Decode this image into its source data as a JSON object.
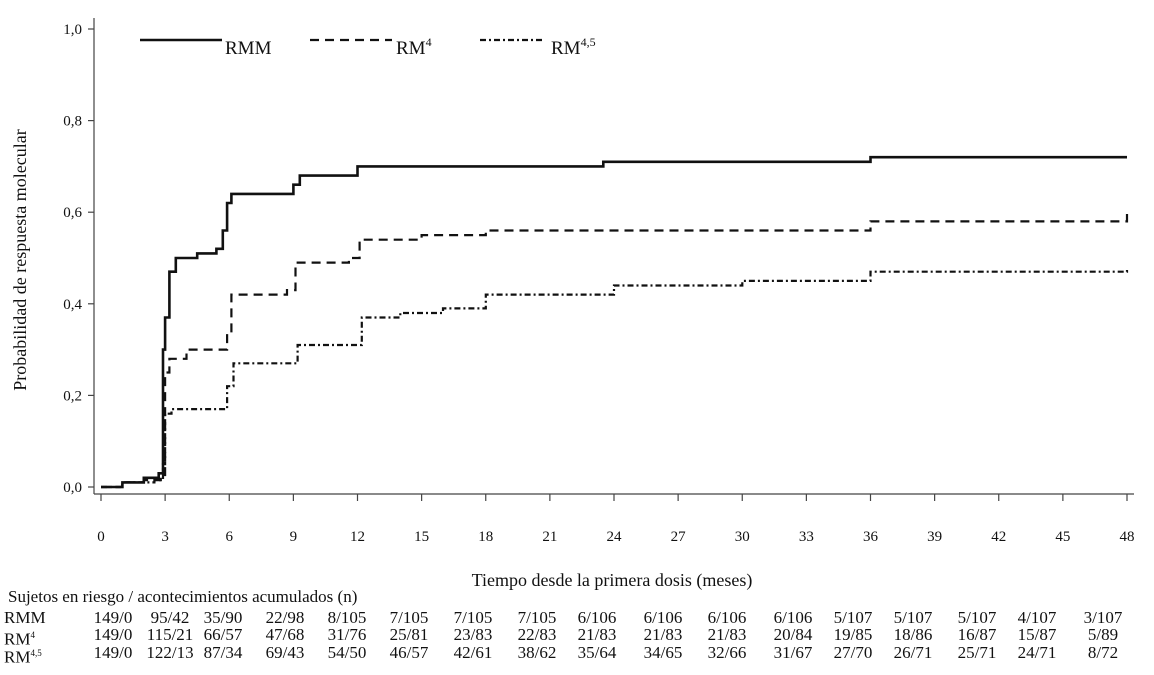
{
  "chart_data": {
    "type": "line",
    "step": true,
    "xlabel": "Tiempo desde la primera dosis (meses)",
    "ylabel": "Probabilidad de respuesta molecular",
    "xlim": [
      0,
      48
    ],
    "ylim": [
      0,
      1.0
    ],
    "xticks": [
      "0",
      "3",
      "6",
      "9",
      "12",
      "15",
      "18",
      "21",
      "24",
      "27",
      "30",
      "33",
      "36",
      "39",
      "42",
      "45",
      "48"
    ],
    "yticks": [
      "0,0",
      "0,2",
      "0,4",
      "0,6",
      "0,8",
      "1,0"
    ],
    "grid": false,
    "legend_position": "top",
    "series": [
      {
        "name": "RMM",
        "style": "solid",
        "x": [
          0,
          1,
          2,
          2.7,
          2.9,
          3.0,
          3.2,
          3.5,
          4.5,
          5.4,
          5.7,
          5.9,
          6.1,
          8.5,
          9.0,
          9.3,
          11.5,
          12.0,
          23.5,
          36.0,
          48.0
        ],
        "y": [
          0,
          0.01,
          0.02,
          0.03,
          0.3,
          0.37,
          0.47,
          0.5,
          0.51,
          0.52,
          0.56,
          0.62,
          0.64,
          0.64,
          0.66,
          0.68,
          0.68,
          0.7,
          0.71,
          0.72,
          0.72
        ]
      },
      {
        "name": "RM4",
        "style": "dashed",
        "x": [
          0,
          1,
          2,
          2.8,
          3.0,
          3.2,
          4.0,
          5.6,
          5.9,
          6.1,
          8.7,
          9.1,
          11.6,
          12.1,
          15.0,
          18.0,
          30.0,
          36.0,
          48.0
        ],
        "y": [
          0,
          0.01,
          0.015,
          0.02,
          0.25,
          0.28,
          0.3,
          0.3,
          0.34,
          0.42,
          0.43,
          0.49,
          0.5,
          0.54,
          0.55,
          0.56,
          0.56,
          0.58,
          0.6
        ]
      },
      {
        "name": "RM4,5",
        "style": "dash-dot",
        "x": [
          0,
          1,
          2.5,
          2.9,
          3.0,
          3.3,
          5.6,
          5.9,
          6.2,
          8.8,
          9.2,
          11.7,
          12.2,
          14.0,
          16.0,
          17.5,
          18.0,
          24.0,
          30.0,
          36.0,
          48.0
        ],
        "y": [
          0,
          0.01,
          0.015,
          0.05,
          0.16,
          0.17,
          0.17,
          0.22,
          0.27,
          0.27,
          0.31,
          0.31,
          0.37,
          0.38,
          0.39,
          0.39,
          0.42,
          0.44,
          0.45,
          0.47,
          0.48
        ]
      }
    ]
  },
  "legend": [
    {
      "label": "RMM",
      "sup": ""
    },
    {
      "label": "RM",
      "sup": "4"
    },
    {
      "label": "RM",
      "sup": "4,5"
    }
  ],
  "risk_table": {
    "title": "Sujetos en riesgo / acontecimientos acumulados (n)",
    "rows": [
      {
        "label": "RMM",
        "values": [
          "149/0",
          "95/42",
          "35/90",
          "22/98",
          "8/105",
          "7/105",
          "7/105",
          "7/105",
          "6/106",
          "6/106",
          "6/106",
          "6/106",
          "5/107",
          "5/107",
          "5/107",
          "4/107",
          "3/107"
        ]
      },
      {
        "label": "RM",
        "sup": "4",
        "values": [
          "149/0",
          "115/21",
          "66/57",
          "47/68",
          "31/76",
          "25/81",
          "23/83",
          "22/83",
          "21/83",
          "21/83",
          "21/83",
          "20/84",
          "19/85",
          "18/86",
          "16/87",
          "15/87",
          "5/89"
        ]
      },
      {
        "label": "RM",
        "sup": "4,5",
        "values": [
          "149/0",
          "122/13",
          "87/34",
          "69/43",
          "54/50",
          "46/57",
          "42/61",
          "38/62",
          "35/64",
          "34/65",
          "32/66",
          "31/67",
          "27/70",
          "26/71",
          "25/71",
          "24/71",
          "8/72"
        ]
      }
    ]
  }
}
